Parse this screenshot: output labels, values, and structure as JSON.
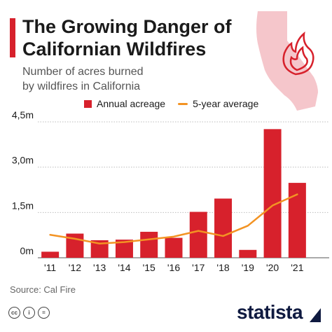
{
  "header": {
    "title_line1": "The Growing Danger of",
    "title_line2": "Californian Wildfires",
    "subtitle_line1": "Number of acres burned",
    "subtitle_line2": "by wildfires in California"
  },
  "legend": {
    "annual_label": "Annual acreage",
    "average_label": "5-year average"
  },
  "colors": {
    "bar": "#d7212c",
    "line": "#f39323",
    "accent": "#d7212c",
    "map_fill": "#f5c6cb",
    "grid": "#bdbdbd",
    "text": "#1a1a1a"
  },
  "chart_data": {
    "type": "bar",
    "categories": [
      "'11",
      "'12",
      "'13",
      "'14",
      "'15",
      "'16",
      "'17",
      "'18",
      "'19",
      "'20",
      "'21"
    ],
    "series": [
      {
        "name": "Annual acreage",
        "type": "bar",
        "values": [
          0.2,
          0.8,
          0.58,
          0.6,
          0.86,
          0.66,
          1.52,
          1.96,
          0.26,
          4.26,
          2.48
        ]
      },
      {
        "name": "5-year average",
        "type": "line",
        "values": [
          0.76,
          0.63,
          0.47,
          0.52,
          0.61,
          0.7,
          0.89,
          0.72,
          1.06,
          1.73,
          2.1
        ]
      }
    ],
    "y_ticks": [
      "0m",
      "1,5m",
      "3,0m",
      "4,5m"
    ],
    "ylim": [
      0,
      4.5
    ],
    "grid": true,
    "legend_position": "top"
  },
  "footer": {
    "source": "Source: Cal Fire",
    "cc_icons": [
      "cc",
      "i",
      "="
    ],
    "brand": "statista"
  }
}
